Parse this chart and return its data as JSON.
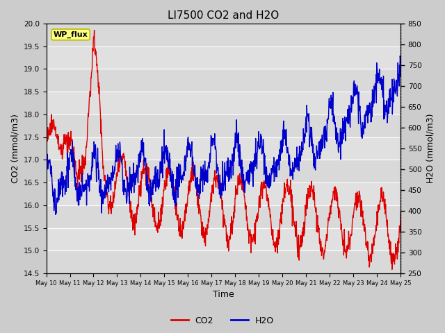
{
  "title": "LI7500 CO2 and H2O",
  "xlabel": "Time",
  "ylabel_left": "CO2 (mmol/m3)",
  "ylabel_right": "H2O (mmol/m3)",
  "watermark": "WP_flux",
  "ylim_left": [
    14.5,
    20.0
  ],
  "ylim_right": [
    250,
    850
  ],
  "xtick_labels": [
    "May 10",
    "May 11",
    "May 12",
    "May 13",
    "May 14",
    "May 15",
    "May 16",
    "May 17",
    "May 18",
    "May 19",
    "May 20",
    "May 21",
    "May 22",
    "May 23",
    "May 24",
    "May 25"
  ],
  "yticks_left": [
    14.5,
    15.0,
    15.5,
    16.0,
    16.5,
    17.0,
    17.5,
    18.0,
    18.5,
    19.0,
    19.5,
    20.0
  ],
  "yticks_right": [
    250,
    300,
    350,
    400,
    450,
    500,
    550,
    600,
    650,
    700,
    750,
    800,
    850
  ],
  "co2_color": "#dd0000",
  "h2o_color": "#0000cc",
  "background_color": "#cccccc",
  "plot_bg_color": "#e0e0e0",
  "grid_color": "#ffffff",
  "line_width": 1.0,
  "watermark_bg": "#ffff88",
  "watermark_border": "#bbbb00",
  "figsize": [
    6.4,
    4.8
  ],
  "dpi": 100
}
